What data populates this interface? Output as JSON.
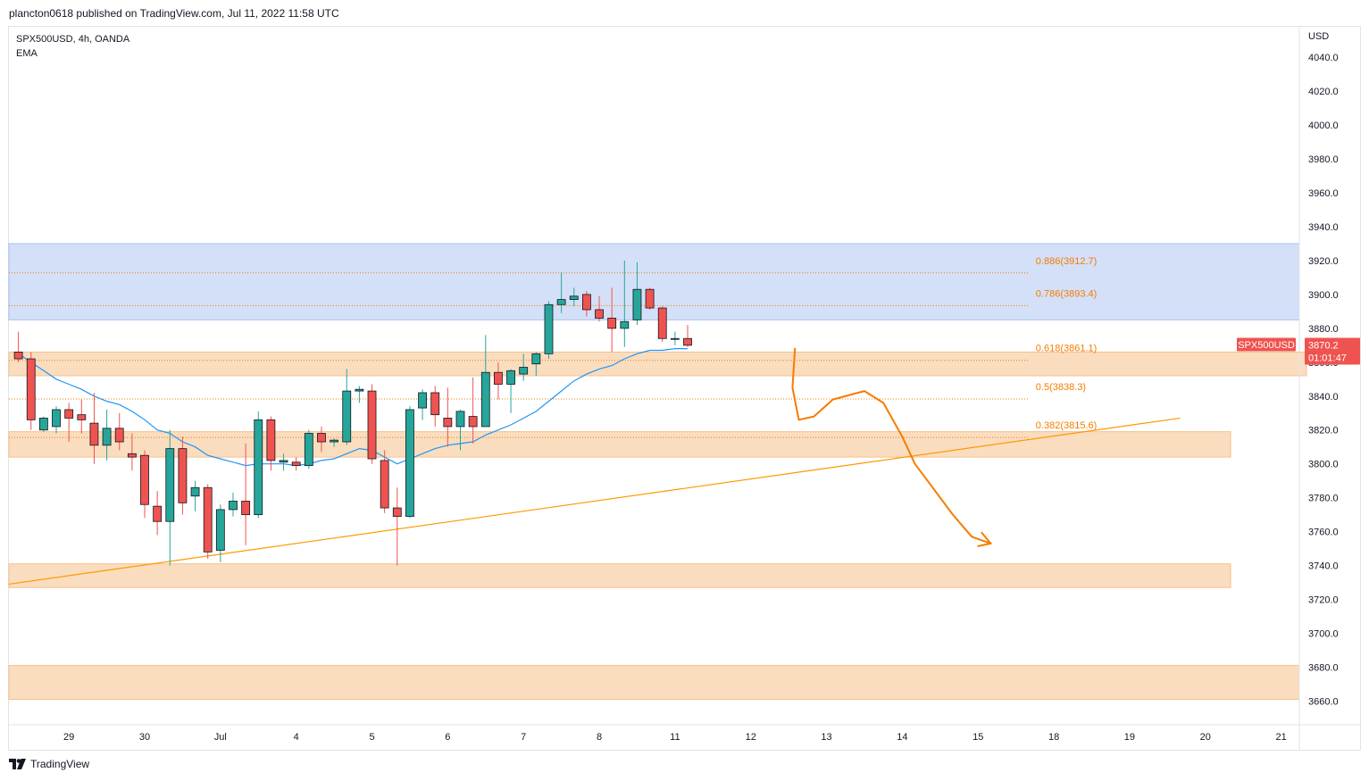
{
  "header": {
    "author": "plancton0618",
    "published_text": "published on TradingView.com,",
    "date": "Jul 11, 2022 11:58 UTC"
  },
  "legend": {
    "symbol": "SPX500USD",
    "interval": "4h",
    "exchange": "OANDA",
    "indicator": "EMA"
  },
  "footer": {
    "brand": "TradingView"
  },
  "colors": {
    "up": "#26a69a",
    "down": "#ef5350",
    "ema": "#2196f3",
    "fib": "#f57c00",
    "trendline": "#ff9800",
    "zone_blue": "#cfddf7",
    "zone_orange": "#fad9b8"
  },
  "chart_data": {
    "type": "candlestick",
    "symbol": "SPX500USD",
    "interval": "4h",
    "currency": "USD",
    "y_axis": {
      "label": "USD",
      "range": [
        3646,
        4058
      ],
      "ticks": [
        "4040.0",
        "4020.0",
        "4000.0",
        "3980.0",
        "3960.0",
        "3940.0",
        "3920.0",
        "3900.0",
        "3880.0",
        "3860.0",
        "3840.0",
        "3820.0",
        "3800.0",
        "3780.0",
        "3760.0",
        "3740.0",
        "3720.0",
        "3700.0",
        "3680.0",
        "3660.0"
      ],
      "tick_values": [
        4040,
        4020,
        4000,
        3980,
        3960,
        3940,
        3920,
        3900,
        3880,
        3860,
        3840,
        3820,
        3800,
        3780,
        3760,
        3740,
        3720,
        3700,
        3680,
        3660
      ]
    },
    "x_axis": {
      "labels": [
        "29",
        "30",
        "Jul",
        "4",
        "5",
        "6",
        "7",
        "8",
        "11",
        "12",
        "13",
        "14",
        "15",
        "18",
        "19",
        "20",
        "21"
      ],
      "label_bar_index": [
        4,
        10,
        16,
        22,
        28,
        34,
        40,
        46,
        52,
        58,
        64,
        70,
        76,
        82,
        88,
        94,
        100
      ]
    },
    "candles": [
      {
        "o": 3866,
        "h": 3878,
        "l": 3860,
        "c": 3862
      },
      {
        "o": 3862,
        "h": 3866,
        "l": 3820,
        "c": 3826
      },
      {
        "o": 3820,
        "h": 3828,
        "l": 3819,
        "c": 3827
      },
      {
        "o": 3822,
        "h": 3834,
        "l": 3818,
        "c": 3832
      },
      {
        "o": 3832,
        "h": 3836,
        "l": 3813,
        "c": 3827
      },
      {
        "o": 3829,
        "h": 3838,
        "l": 3818,
        "c": 3826
      },
      {
        "o": 3824,
        "h": 3842,
        "l": 3800,
        "c": 3811
      },
      {
        "o": 3811,
        "h": 3832,
        "l": 3802,
        "c": 3821
      },
      {
        "o": 3821,
        "h": 3830,
        "l": 3808,
        "c": 3813
      },
      {
        "o": 3806,
        "h": 3818,
        "l": 3796,
        "c": 3804
      },
      {
        "o": 3805,
        "h": 3808,
        "l": 3768,
        "c": 3776
      },
      {
        "o": 3775,
        "h": 3784,
        "l": 3758,
        "c": 3766
      },
      {
        "o": 3766,
        "h": 3820,
        "l": 3740,
        "c": 3809
      },
      {
        "o": 3809,
        "h": 3816,
        "l": 3770,
        "c": 3777
      },
      {
        "o": 3781,
        "h": 3790,
        "l": 3772,
        "c": 3786
      },
      {
        "o": 3786,
        "h": 3788,
        "l": 3744,
        "c": 3748
      },
      {
        "o": 3749,
        "h": 3776,
        "l": 3742,
        "c": 3773
      },
      {
        "o": 3773,
        "h": 3783,
        "l": 3769,
        "c": 3778
      },
      {
        "o": 3778,
        "h": 3812,
        "l": 3752,
        "c": 3770
      },
      {
        "o": 3770,
        "h": 3831,
        "l": 3768,
        "c": 3826
      },
      {
        "o": 3826,
        "h": 3828,
        "l": 3796,
        "c": 3802
      },
      {
        "o": 3801,
        "h": 3806,
        "l": 3796,
        "c": 3802
      },
      {
        "o": 3801,
        "h": 3804,
        "l": 3796,
        "c": 3799
      },
      {
        "o": 3799,
        "h": 3820,
        "l": 3797,
        "c": 3818
      },
      {
        "o": 3818,
        "h": 3822,
        "l": 3807,
        "c": 3813
      },
      {
        "o": 3813,
        "h": 3815,
        "l": 3810,
        "c": 3814
      },
      {
        "o": 3813,
        "h": 3856,
        "l": 3811,
        "c": 3843
      },
      {
        "o": 3843,
        "h": 3846,
        "l": 3836,
        "c": 3844
      },
      {
        "o": 3843,
        "h": 3847,
        "l": 3800,
        "c": 3803
      },
      {
        "o": 3802,
        "h": 3808,
        "l": 3771,
        "c": 3774
      },
      {
        "o": 3774,
        "h": 3786,
        "l": 3740,
        "c": 3769
      },
      {
        "o": 3769,
        "h": 3834,
        "l": 3768,
        "c": 3832
      },
      {
        "o": 3833,
        "h": 3844,
        "l": 3826,
        "c": 3842
      },
      {
        "o": 3842,
        "h": 3846,
        "l": 3822,
        "c": 3829
      },
      {
        "o": 3827,
        "h": 3845,
        "l": 3810,
        "c": 3822
      },
      {
        "o": 3822,
        "h": 3832,
        "l": 3808,
        "c": 3831
      },
      {
        "o": 3828,
        "h": 3851,
        "l": 3812,
        "c": 3822
      },
      {
        "o": 3822,
        "h": 3876,
        "l": 3822,
        "c": 3854
      },
      {
        "o": 3854,
        "h": 3860,
        "l": 3838,
        "c": 3847
      },
      {
        "o": 3847,
        "h": 3856,
        "l": 3830,
        "c": 3855
      },
      {
        "o": 3853,
        "h": 3865,
        "l": 3849,
        "c": 3857
      },
      {
        "o": 3859,
        "h": 3866,
        "l": 3852,
        "c": 3865
      },
      {
        "o": 3865,
        "h": 3896,
        "l": 3862,
        "c": 3894
      },
      {
        "o": 3894,
        "h": 3913,
        "l": 3889,
        "c": 3897
      },
      {
        "o": 3897,
        "h": 3904,
        "l": 3893,
        "c": 3899
      },
      {
        "o": 3900,
        "h": 3902,
        "l": 3887,
        "c": 3891
      },
      {
        "o": 3891,
        "h": 3899,
        "l": 3884,
        "c": 3886
      },
      {
        "o": 3886,
        "h": 3904,
        "l": 3866,
        "c": 3880
      },
      {
        "o": 3880,
        "h": 3920,
        "l": 3869,
        "c": 3884
      },
      {
        "o": 3885,
        "h": 3919,
        "l": 3882,
        "c": 3903
      },
      {
        "o": 3903,
        "h": 3904,
        "l": 3891,
        "c": 3892
      },
      {
        "o": 3892,
        "h": 3893,
        "l": 3872,
        "c": 3874
      },
      {
        "o": 3874,
        "h": 3878,
        "l": 3870,
        "c": 3874
      },
      {
        "o": 3874,
        "h": 3882,
        "l": 3869,
        "c": 3870
      }
    ],
    "ema": [
      3865,
      3860,
      3855,
      3850,
      3847,
      3844,
      3840,
      3837,
      3835,
      3831,
      3826,
      3820,
      3818,
      3813,
      3810,
      3805,
      3803,
      3801,
      3799,
      3800,
      3800,
      3800,
      3799,
      3800,
      3802,
      3803,
      3806,
      3809,
      3808,
      3804,
      3800,
      3803,
      3806,
      3809,
      3811,
      3812,
      3813,
      3817,
      3820,
      3823,
      3827,
      3831,
      3837,
      3843,
      3849,
      3853,
      3856,
      3858,
      3862,
      3865,
      3867,
      3867,
      3868,
      3868
    ],
    "zones": [
      {
        "name": "blue-resistance",
        "from": 3885,
        "to": 3930,
        "start_bar": 0,
        "end_bar": "right-edge",
        "color": "blue"
      },
      {
        "name": "orange-zone-1",
        "from": 3852,
        "to": 3866,
        "start_bar": 0,
        "end_bar": 102,
        "color": "orange"
      },
      {
        "name": "orange-zone-2",
        "from": 3804,
        "to": 3819,
        "start_bar": 0,
        "end_bar": 96,
        "color": "orange"
      },
      {
        "name": "orange-zone-3",
        "from": 3727,
        "to": 3741,
        "start_bar": 0,
        "end_bar": 96,
        "color": "orange"
      },
      {
        "name": "orange-zone-4",
        "from": 3661,
        "to": 3681,
        "start_bar": 0,
        "end_bar": "right-edge",
        "color": "orange"
      }
    ],
    "fib_levels": [
      {
        "label": "0.886(3912.7)",
        "value": 3912.7
      },
      {
        "label": "0.786(3893.4)",
        "value": 3893.4
      },
      {
        "label": "0.618(3861.1)",
        "value": 3861.1
      },
      {
        "label": "0.5(3838.3)",
        "value": 3838.3
      },
      {
        "label": "0.382(3815.6)",
        "value": 3815.6
      }
    ],
    "fib_end_bar": 80,
    "trendline": {
      "start_bar": 0,
      "start_price": 3729,
      "end_bar": 92,
      "end_price": 3827
    },
    "projection_path": [
      {
        "bar": 61.5,
        "price": 3868
      },
      {
        "bar": 61.3,
        "price": 3845
      },
      {
        "bar": 61.8,
        "price": 3826
      },
      {
        "bar": 63,
        "price": 3828
      },
      {
        "bar": 64.5,
        "price": 3838
      },
      {
        "bar": 66,
        "price": 3841
      },
      {
        "bar": 67,
        "price": 3843
      },
      {
        "bar": 68.5,
        "price": 3836
      },
      {
        "bar": 70,
        "price": 3816
      },
      {
        "bar": 71,
        "price": 3800
      },
      {
        "bar": 72.5,
        "price": 3785
      },
      {
        "bar": 74,
        "price": 3770
      },
      {
        "bar": 75.5,
        "price": 3757
      },
      {
        "bar": 77,
        "price": 3753
      }
    ],
    "last_price": {
      "symbol": "SPX500USD",
      "price": "3870.2",
      "countdown": "01:01:47",
      "value": 3870.2
    }
  }
}
